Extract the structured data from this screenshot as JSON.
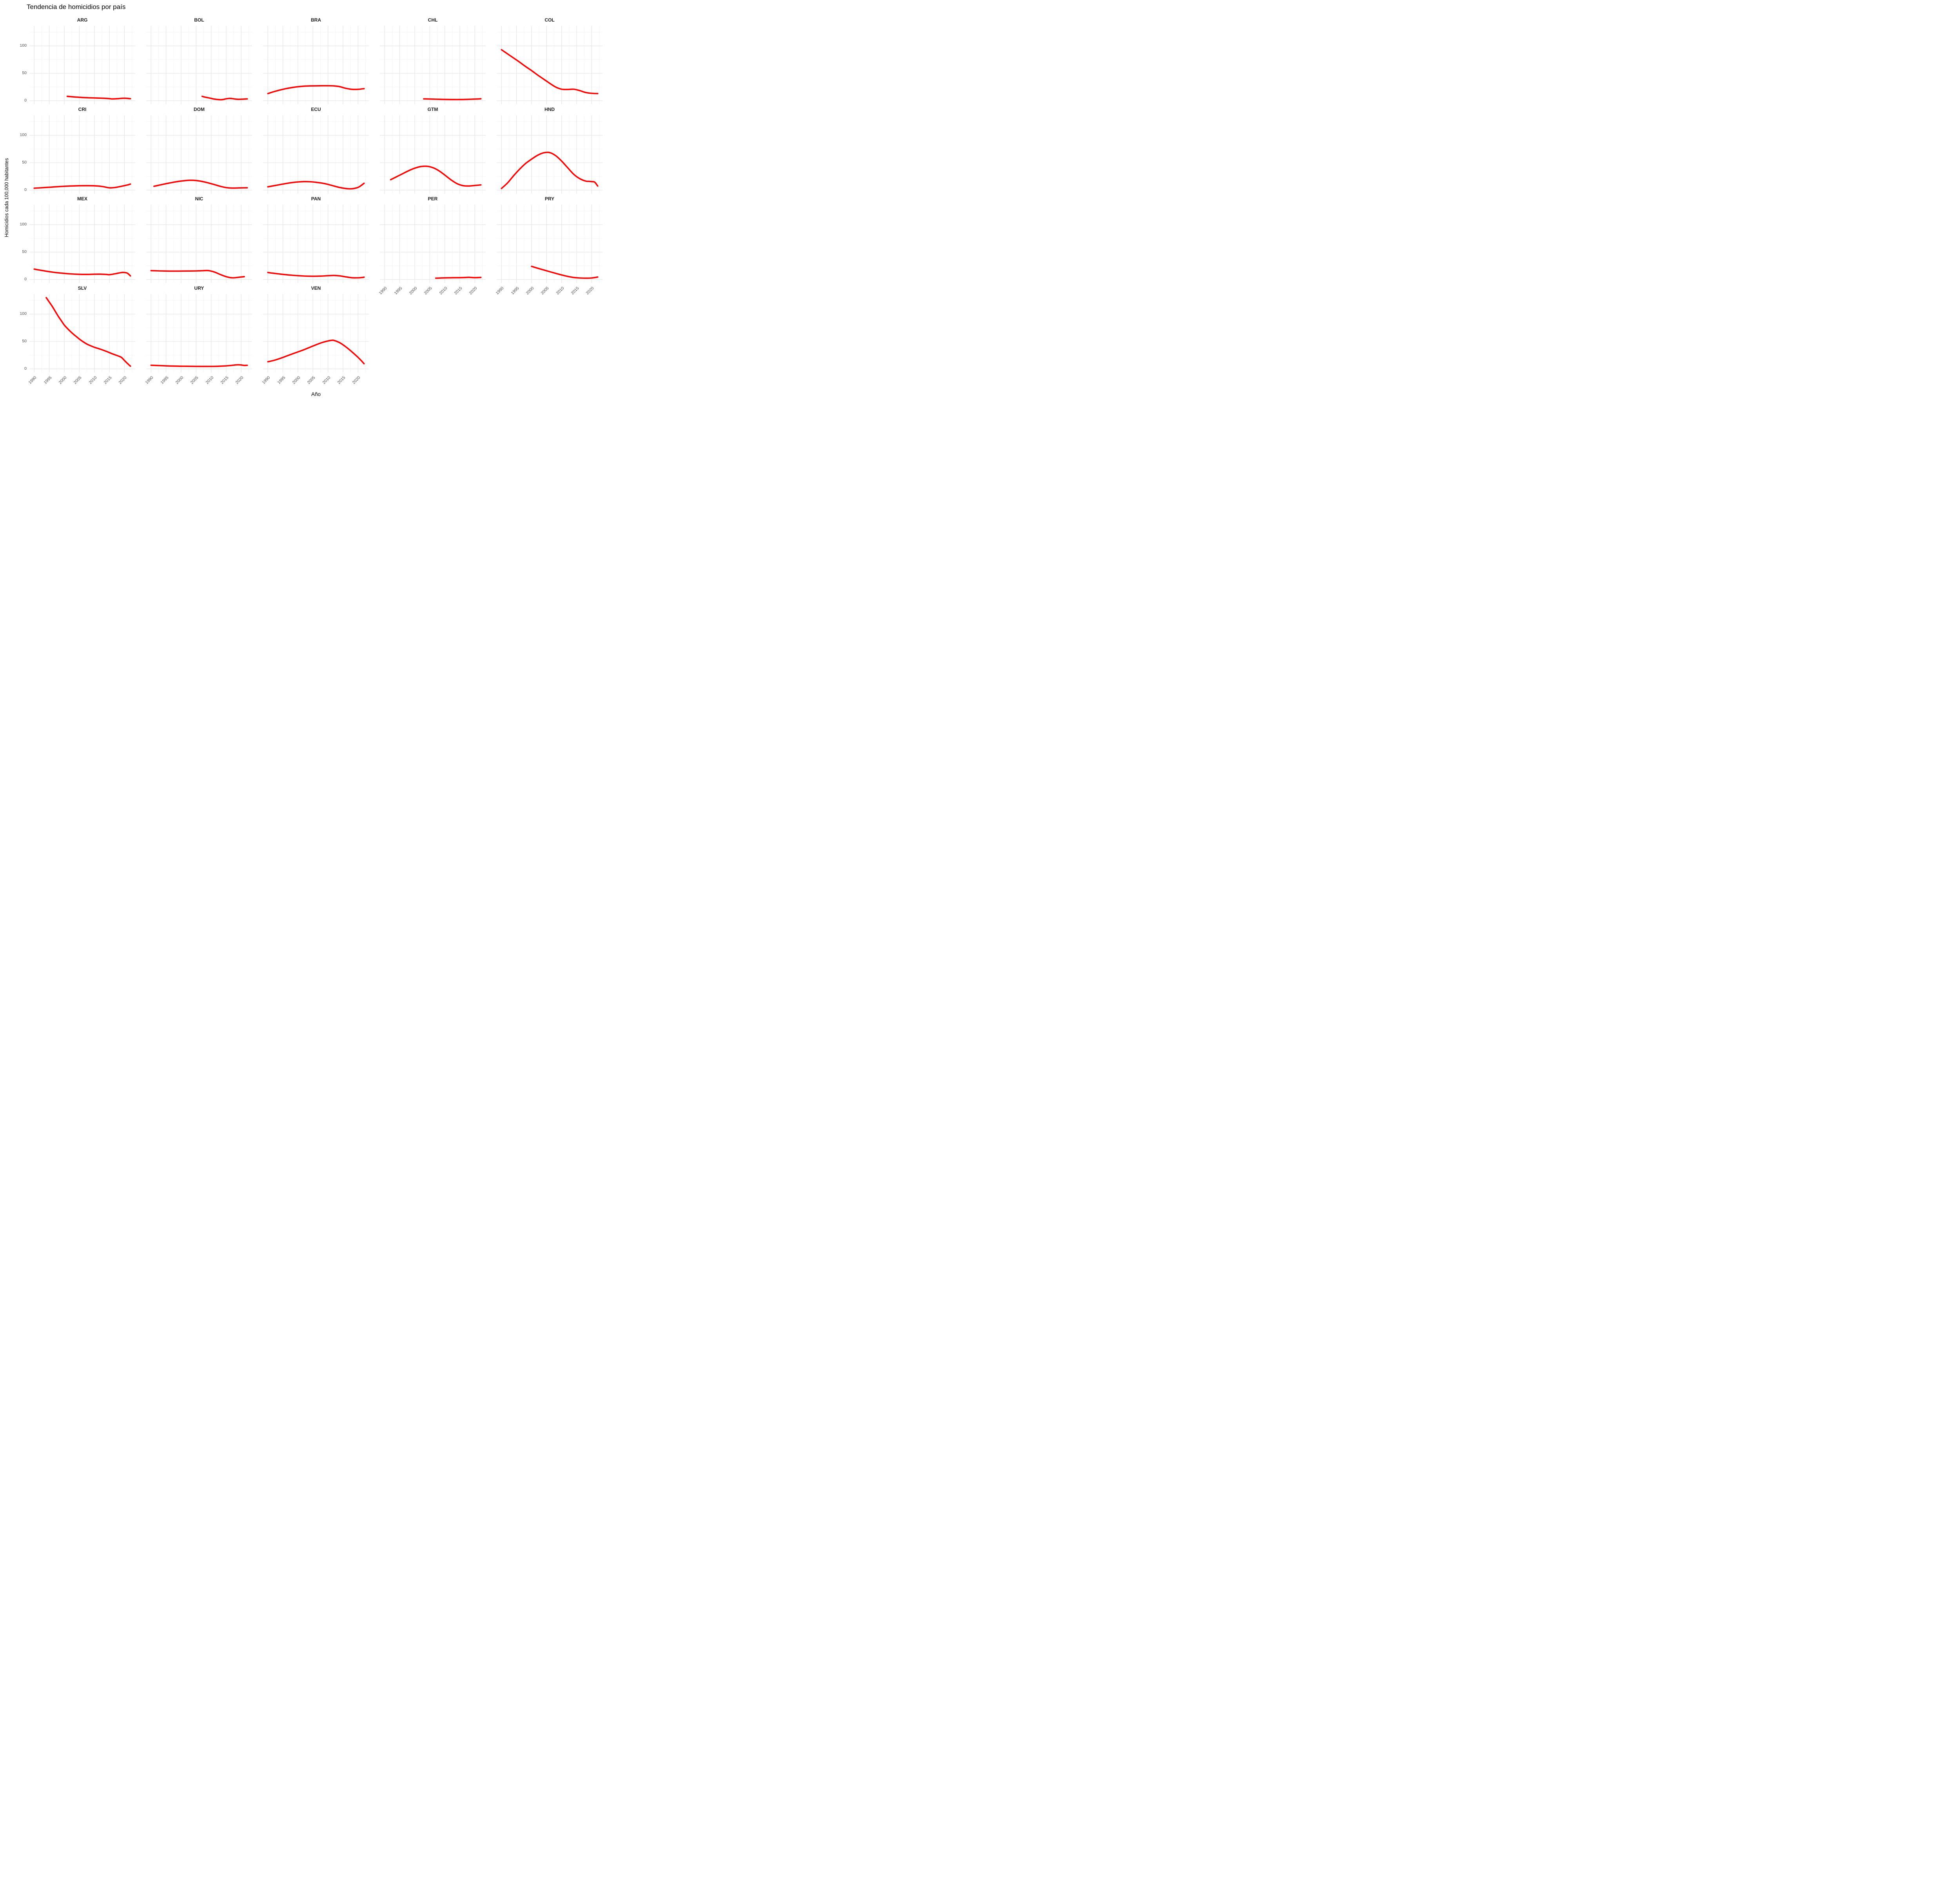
{
  "title": "Tendencia de homicidios por país",
  "axes": {
    "x_title": "Año",
    "y_title": "Homicidios cada 100,000 habitantes",
    "x_ticks": [
      1990,
      1995,
      2000,
      2005,
      2010,
      2015,
      2020
    ],
    "x_minor_ticks": [
      1992.5,
      1997.5,
      2002.5,
      2007.5,
      2012.5,
      2017.5,
      2022.5
    ],
    "y_ticks": [
      0,
      50,
      100
    ],
    "y_minor_ticks": [
      25,
      75,
      125
    ],
    "x_domain": [
      1988.4,
      2023.6
    ],
    "y_domain": [
      -6.5,
      136.5
    ]
  },
  "style": {
    "line_color": "#FF0000",
    "line_width": 3.6,
    "grid_major_color": "#E6E6E6",
    "grid_minor_color": "#F2F2F2",
    "tick_label_color": "#4D4D4D",
    "background": "#FFFFFF"
  },
  "chart_data": {
    "type": "line",
    "title": "Tendencia de homicidios por país",
    "xlabel": "Año",
    "ylabel": "Homicidios cada 100,000 habitantes",
    "legend": "none",
    "grid": "on",
    "facets": [
      {
        "label": "ARG",
        "series": [
          [
            2001,
            8
          ],
          [
            2003,
            7
          ],
          [
            2005,
            6.2
          ],
          [
            2007,
            5.6
          ],
          [
            2009,
            5.2
          ],
          [
            2011,
            4.9
          ],
          [
            2013,
            4.5
          ],
          [
            2015,
            3.8
          ],
          [
            2016,
            3.3
          ],
          [
            2018,
            3.8
          ],
          [
            2019,
            4.4
          ],
          [
            2020,
            4.5
          ],
          [
            2021,
            4.3
          ],
          [
            2022,
            3.7
          ]
        ]
      },
      {
        "label": "BOL",
        "series": [
          [
            2007,
            8
          ],
          [
            2008,
            6.5
          ],
          [
            2010,
            4.3
          ],
          [
            2011,
            3
          ],
          [
            2013,
            1.9
          ],
          [
            2014,
            2.3
          ],
          [
            2015,
            3.5
          ],
          [
            2016,
            4.2
          ],
          [
            2017,
            3.9
          ],
          [
            2018,
            3
          ],
          [
            2019,
            2.6
          ],
          [
            2020,
            2.7
          ],
          [
            2021,
            3
          ],
          [
            2022,
            3.4
          ]
        ]
      },
      {
        "label": "BRA",
        "series": [
          [
            1990,
            13
          ],
          [
            1992,
            16.5
          ],
          [
            1994,
            19.5
          ],
          [
            1996,
            22
          ],
          [
            1998,
            24
          ],
          [
            2000,
            25.5
          ],
          [
            2002,
            26.5
          ],
          [
            2004,
            27
          ],
          [
            2006,
            27.2
          ],
          [
            2008,
            27.3
          ],
          [
            2010,
            27.3
          ],
          [
            2012,
            27
          ],
          [
            2014,
            25.5
          ],
          [
            2016,
            22.5
          ],
          [
            2018,
            20.8
          ],
          [
            2020,
            20.8
          ],
          [
            2022,
            22
          ]
        ]
      },
      {
        "label": "CHL",
        "series": [
          [
            2003,
            3.4
          ],
          [
            2005,
            3.1
          ],
          [
            2007,
            2.8
          ],
          [
            2009,
            2.5
          ],
          [
            2011,
            2.3
          ],
          [
            2013,
            2.2
          ],
          [
            2015,
            2.2
          ],
          [
            2017,
            2.4
          ],
          [
            2019,
            2.8
          ],
          [
            2021,
            3.2
          ],
          [
            2022,
            3.6
          ]
        ]
      },
      {
        "label": "COL",
        "series": [
          [
            1990,
            93
          ],
          [
            1992,
            85.5
          ],
          [
            1994,
            78
          ],
          [
            1996,
            70.5
          ],
          [
            1998,
            62.5
          ],
          [
            2000,
            55
          ],
          [
            2002,
            47
          ],
          [
            2004,
            39.5
          ],
          [
            2006,
            32
          ],
          [
            2008,
            25
          ],
          [
            2010,
            21
          ],
          [
            2012,
            20.5
          ],
          [
            2014,
            21
          ],
          [
            2016,
            18.5
          ],
          [
            2018,
            15
          ],
          [
            2020,
            13.5
          ],
          [
            2022,
            13
          ]
        ]
      },
      {
        "label": "CRI",
        "series": [
          [
            1990,
            3.5
          ],
          [
            1993,
            4.5
          ],
          [
            1996,
            5.6
          ],
          [
            1999,
            6.7
          ],
          [
            2002,
            7.5
          ],
          [
            2005,
            8
          ],
          [
            2008,
            8.1
          ],
          [
            2011,
            7.6
          ],
          [
            2013,
            6.3
          ],
          [
            2015,
            4.2
          ],
          [
            2017,
            4.9
          ],
          [
            2019,
            7
          ],
          [
            2021,
            9.4
          ],
          [
            2022,
            11
          ]
        ]
      },
      {
        "label": "DOM",
        "series": [
          [
            1991,
            7
          ],
          [
            1993,
            9.4
          ],
          [
            1995,
            11.7
          ],
          [
            1997,
            13.9
          ],
          [
            1999,
            15.8
          ],
          [
            2001,
            17.2
          ],
          [
            2003,
            18
          ],
          [
            2005,
            17.5
          ],
          [
            2007,
            15.8
          ],
          [
            2009,
            13.2
          ],
          [
            2011,
            10.2
          ],
          [
            2013,
            7
          ],
          [
            2015,
            4.6
          ],
          [
            2017,
            3.7
          ],
          [
            2019,
            4
          ],
          [
            2021,
            4.2
          ],
          [
            2022,
            4.3
          ]
        ]
      },
      {
        "label": "ECU",
        "series": [
          [
            1990,
            6
          ],
          [
            1992,
            8
          ],
          [
            1994,
            10
          ],
          [
            1996,
            12
          ],
          [
            1998,
            13.7
          ],
          [
            2000,
            14.9
          ],
          [
            2002,
            15.5
          ],
          [
            2004,
            15.3
          ],
          [
            2006,
            14.3
          ],
          [
            2008,
            12.8
          ],
          [
            2010,
            10.5
          ],
          [
            2012,
            7.5
          ],
          [
            2014,
            4.7
          ],
          [
            2016,
            2.9
          ],
          [
            2018,
            2.5
          ],
          [
            2020,
            5
          ],
          [
            2021,
            8.3
          ],
          [
            2022,
            12.5
          ]
        ]
      },
      {
        "label": "GTM",
        "series": [
          [
            1992,
            19
          ],
          [
            1994,
            24.5
          ],
          [
            1996,
            30
          ],
          [
            1998,
            35.5
          ],
          [
            2000,
            40
          ],
          [
            2002,
            43
          ],
          [
            2004,
            43.5
          ],
          [
            2006,
            41
          ],
          [
            2008,
            35.5
          ],
          [
            2010,
            27.5
          ],
          [
            2012,
            19
          ],
          [
            2014,
            12
          ],
          [
            2016,
            8.2
          ],
          [
            2018,
            7.5
          ],
          [
            2020,
            8.5
          ],
          [
            2022,
            9.5
          ]
        ]
      },
      {
        "label": "HND",
        "series": [
          [
            1990,
            3
          ],
          [
            1992,
            13
          ],
          [
            1994,
            26
          ],
          [
            1996,
            38
          ],
          [
            1998,
            48.5
          ],
          [
            2000,
            56.5
          ],
          [
            2002,
            63.5
          ],
          [
            2004,
            68
          ],
          [
            2006,
            68.5
          ],
          [
            2008,
            63
          ],
          [
            2010,
            53
          ],
          [
            2012,
            41
          ],
          [
            2014,
            29
          ],
          [
            2016,
            21
          ],
          [
            2018,
            16.5
          ],
          [
            2019,
            16
          ],
          [
            2020,
            15.5
          ],
          [
            2021,
            14.5
          ],
          [
            2022,
            7.5
          ]
        ]
      },
      {
        "label": "MEX",
        "series": [
          [
            1990,
            19
          ],
          [
            1992,
            17
          ],
          [
            1994,
            15.2
          ],
          [
            1996,
            13.5
          ],
          [
            1998,
            12.2
          ],
          [
            2000,
            11.2
          ],
          [
            2002,
            10.3
          ],
          [
            2004,
            9.7
          ],
          [
            2006,
            9.4
          ],
          [
            2008,
            9.4
          ],
          [
            2010,
            9.7
          ],
          [
            2012,
            9.8
          ],
          [
            2014,
            9.3
          ],
          [
            2015,
            8.8
          ],
          [
            2017,
            10.6
          ],
          [
            2019,
            12.7
          ],
          [
            2020,
            12.8
          ],
          [
            2021,
            11.5
          ],
          [
            2022,
            6.6
          ]
        ]
      },
      {
        "label": "NIC",
        "series": [
          [
            1990,
            16.2
          ],
          [
            1993,
            15.7
          ],
          [
            1996,
            15.4
          ],
          [
            1999,
            15.4
          ],
          [
            2002,
            15.5
          ],
          [
            2005,
            15.7
          ],
          [
            2007,
            16
          ],
          [
            2009,
            16.3
          ],
          [
            2011,
            13.8
          ],
          [
            2013,
            9.2
          ],
          [
            2015,
            5.2
          ],
          [
            2017,
            3.1
          ],
          [
            2019,
            4
          ],
          [
            2021,
            5.2
          ]
        ]
      },
      {
        "label": "PAN",
        "series": [
          [
            1990,
            12.8
          ],
          [
            1992,
            11.3
          ],
          [
            1994,
            10
          ],
          [
            1996,
            8.8
          ],
          [
            1998,
            7.8
          ],
          [
            2000,
            7
          ],
          [
            2002,
            6.4
          ],
          [
            2004,
            6.1
          ],
          [
            2006,
            6
          ],
          [
            2008,
            6.3
          ],
          [
            2010,
            7
          ],
          [
            2012,
            7.4
          ],
          [
            2014,
            6.6
          ],
          [
            2016,
            4.8
          ],
          [
            2018,
            3.2
          ],
          [
            2020,
            3.1
          ],
          [
            2021,
            3.5
          ],
          [
            2022,
            4.2
          ]
        ]
      },
      {
        "label": "PER",
        "series": [
          [
            2007,
            2.5
          ],
          [
            2009,
            2.9
          ],
          [
            2011,
            3.1
          ],
          [
            2013,
            3.3
          ],
          [
            2015,
            3.4
          ],
          [
            2017,
            3.7
          ],
          [
            2018,
            4
          ],
          [
            2020,
            3.4
          ],
          [
            2022,
            3.9
          ]
        ]
      },
      {
        "label": "PRY",
        "series": [
          [
            2000,
            24
          ],
          [
            2002,
            20.7
          ],
          [
            2004,
            17.5
          ],
          [
            2006,
            14.4
          ],
          [
            2008,
            11.3
          ],
          [
            2010,
            8.3
          ],
          [
            2012,
            5.7
          ],
          [
            2014,
            3.7
          ],
          [
            2016,
            2.8
          ],
          [
            2018,
            2.5
          ],
          [
            2020,
            2.8
          ],
          [
            2022,
            4.5
          ]
        ]
      },
      {
        "label": "SLV",
        "series": [
          [
            1994,
            130
          ],
          [
            1995,
            122
          ],
          [
            1996,
            114
          ],
          [
            1997,
            105
          ],
          [
            1998,
            96
          ],
          [
            1999,
            88
          ],
          [
            2000,
            80
          ],
          [
            2001,
            74
          ],
          [
            2002,
            68.5
          ],
          [
            2003,
            63.5
          ],
          [
            2004,
            59
          ],
          [
            2005,
            54.5
          ],
          [
            2006,
            50.5
          ],
          [
            2007,
            47
          ],
          [
            2008,
            44
          ],
          [
            2010,
            39.5
          ],
          [
            2012,
            36
          ],
          [
            2014,
            32
          ],
          [
            2016,
            27.5
          ],
          [
            2018,
            23.5
          ],
          [
            2019,
            21
          ],
          [
            2020,
            15.5
          ],
          [
            2021,
            10
          ],
          [
            2022,
            5
          ]
        ]
      },
      {
        "label": "URY",
        "series": [
          [
            1990,
            6.7
          ],
          [
            1993,
            6
          ],
          [
            1996,
            5.4
          ],
          [
            1999,
            5
          ],
          [
            2002,
            4.8
          ],
          [
            2005,
            4.6
          ],
          [
            2008,
            4.5
          ],
          [
            2011,
            4.6
          ],
          [
            2014,
            5.2
          ],
          [
            2016,
            6
          ],
          [
            2018,
            7.2
          ],
          [
            2019,
            7.5
          ],
          [
            2020,
            7.2
          ],
          [
            2021,
            6.4
          ],
          [
            2022,
            6.6
          ]
        ]
      },
      {
        "label": "VEN",
        "series": [
          [
            1990,
            13
          ],
          [
            1992,
            15.5
          ],
          [
            1994,
            19
          ],
          [
            1996,
            23
          ],
          [
            1998,
            27
          ],
          [
            2000,
            31
          ],
          [
            2002,
            35
          ],
          [
            2004,
            39.5
          ],
          [
            2006,
            44
          ],
          [
            2008,
            48
          ],
          [
            2010,
            51
          ],
          [
            2011,
            52
          ],
          [
            2012,
            52
          ],
          [
            2014,
            47.5
          ],
          [
            2016,
            40
          ],
          [
            2018,
            31
          ],
          [
            2020,
            21
          ],
          [
            2021,
            15.5
          ],
          [
            2022,
            9.5
          ]
        ]
      }
    ]
  }
}
